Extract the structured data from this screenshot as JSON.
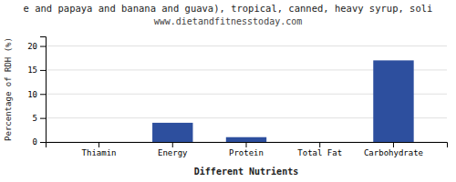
{
  "chart_data": {
    "type": "bar",
    "title": "e and papaya and banana and guava), tropical, canned, heavy syrup, soli",
    "subtitle": "www.dietandfitnesstoday.com",
    "categories": [
      "Thiamin",
      "Energy",
      "Protein",
      "Total Fat",
      "Carbohydrate"
    ],
    "values": [
      0.0,
      4.0,
      1.0,
      0.0,
      17.0
    ],
    "color": "#2d4f9e",
    "xlabel": "Different Nutrients",
    "ylabel": "Percentage of RDH (%)",
    "ylim": [
      0,
      22
    ],
    "yticks": [
      0,
      5,
      10,
      15,
      20
    ],
    "grid": true
  }
}
